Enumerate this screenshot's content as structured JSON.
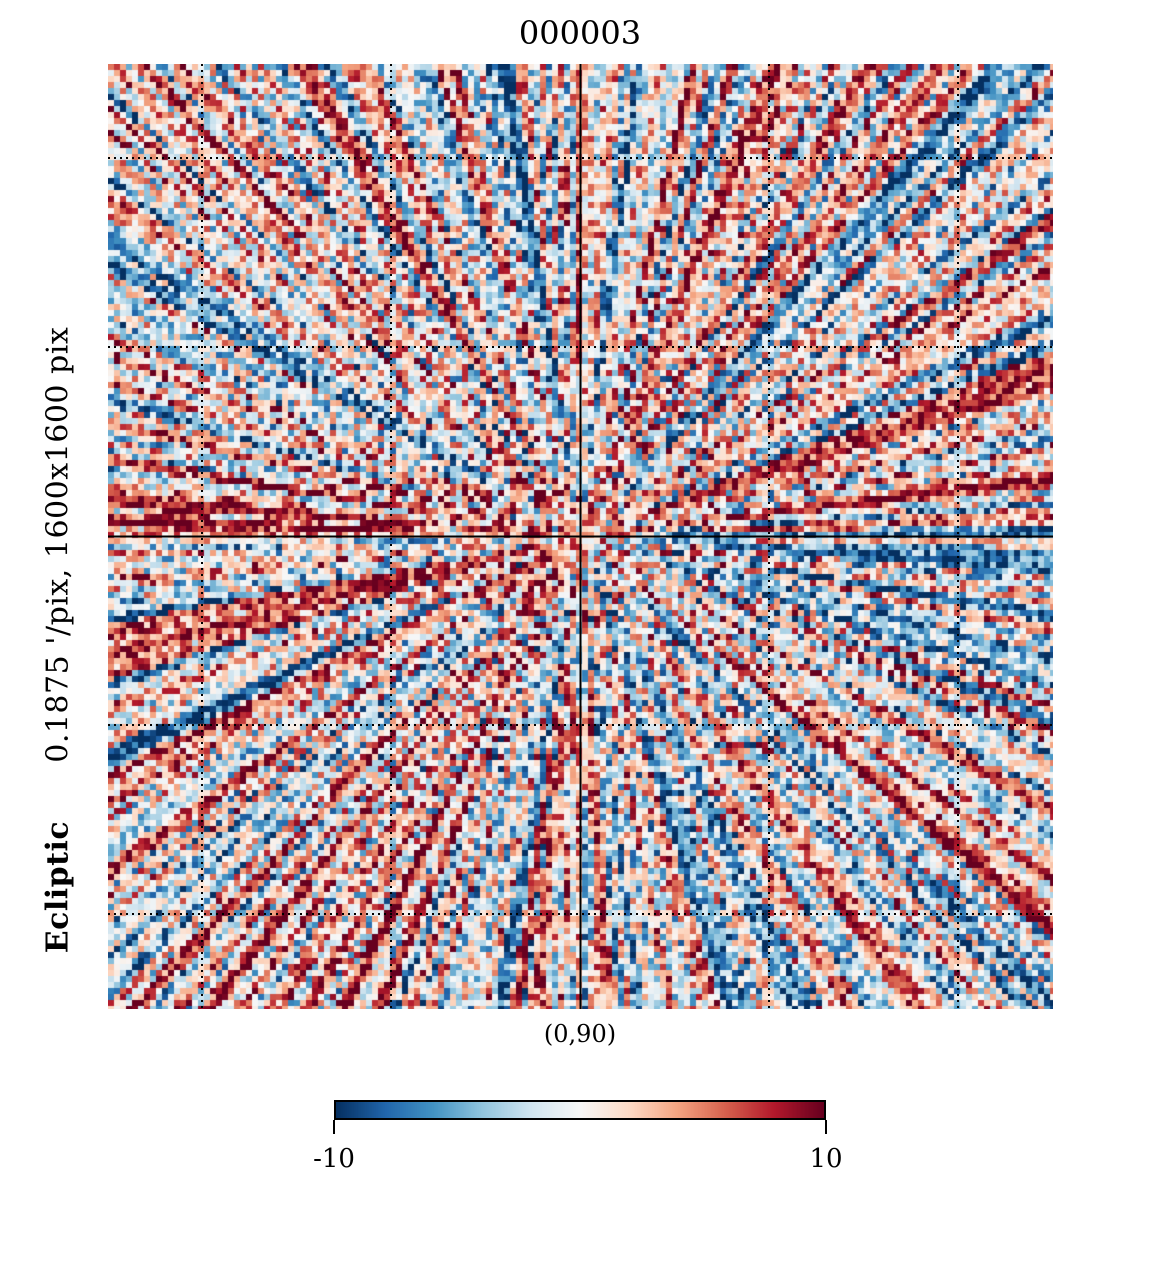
{
  "title": "000003",
  "frame_label": "Ecliptic",
  "resolution_label": "0.1875 '/pix,  1600x1600 pix",
  "center_label": "(0,90)",
  "colorbar": {
    "min_label": "-10",
    "max_label": "10",
    "min": -10,
    "max": 10,
    "cmap": "RdBu_r"
  },
  "chart_data": {
    "type": "heatmap",
    "title": "000003",
    "projection": "gnomonic",
    "coordinate_frame": "Ecliptic",
    "center": "(0,90)",
    "resolution": "0.1875 '/pix",
    "image_size": "1600x1600 pix",
    "value_range": [
      -10,
      10
    ],
    "pattern": "radial streaks converging on the centre (ecliptic pole), alternating red and blue",
    "graticule": "dotted",
    "colormap": [
      "#053061",
      "#2166ac",
      "#4393c3",
      "#92c5de",
      "#d1e5f0",
      "#f7f7f7",
      "#fddbc7",
      "#f4a582",
      "#d6604d",
      "#b2182b",
      "#67001f"
    ]
  }
}
